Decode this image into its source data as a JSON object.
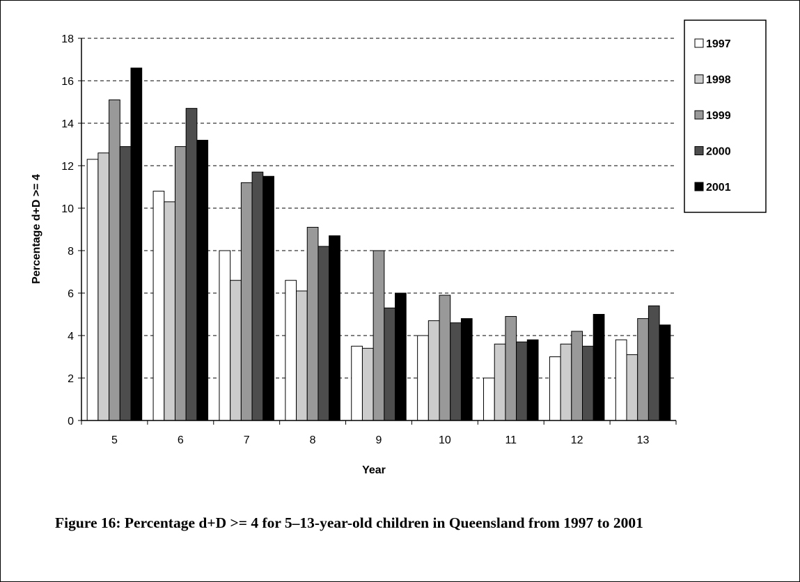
{
  "caption": "Figure 16:  Percentage d+D >= 4  for 5–13-year-old children in Queensland from 1997 to 2001",
  "chart_data": {
    "type": "bar",
    "xlabel": "Year",
    "ylabel": "Percentage d+D >= 4",
    "ylim": [
      0,
      18
    ],
    "yticks": [
      0,
      2,
      4,
      6,
      8,
      10,
      12,
      14,
      16,
      18
    ],
    "grid": true,
    "legend_position": "right",
    "categories": [
      "5",
      "6",
      "7",
      "8",
      "9",
      "10",
      "11",
      "12",
      "13"
    ],
    "series": [
      {
        "name": "1997",
        "color": "#ffffff",
        "values": [
          12.3,
          10.8,
          8.0,
          6.6,
          3.5,
          4.0,
          2.0,
          3.0,
          3.8
        ]
      },
      {
        "name": "1998",
        "color": "#cccccc",
        "values": [
          12.6,
          10.3,
          6.6,
          6.1,
          3.4,
          4.7,
          3.6,
          3.6,
          3.1
        ]
      },
      {
        "name": "1999",
        "color": "#999999",
        "values": [
          15.1,
          12.9,
          11.2,
          9.1,
          8.0,
          5.9,
          4.9,
          4.2,
          4.8
        ]
      },
      {
        "name": "2000",
        "color": "#4d4d4d",
        "values": [
          12.9,
          14.7,
          11.7,
          8.2,
          5.3,
          4.6,
          3.7,
          3.5,
          5.4
        ]
      },
      {
        "name": "2001",
        "color": "#000000",
        "values": [
          16.6,
          13.2,
          11.5,
          8.7,
          6.0,
          4.8,
          3.8,
          5.0,
          4.5
        ]
      }
    ]
  }
}
